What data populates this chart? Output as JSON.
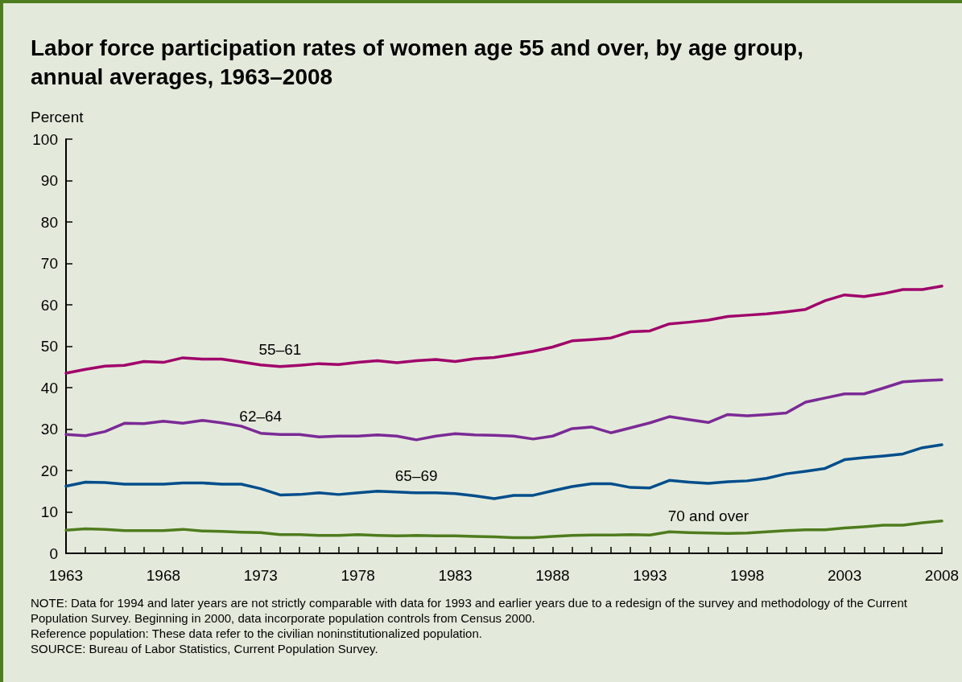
{
  "chart_data": {
    "type": "line",
    "title": "Labor force participation rates of women age 55 and over, by age group, annual averages, 1963–2008",
    "ylabel": "Percent",
    "x": [
      1963,
      1964,
      1965,
      1966,
      1967,
      1968,
      1969,
      1970,
      1971,
      1972,
      1973,
      1974,
      1975,
      1976,
      1977,
      1978,
      1979,
      1980,
      1981,
      1982,
      1983,
      1984,
      1985,
      1986,
      1987,
      1988,
      1989,
      1990,
      1991,
      1992,
      1993,
      1994,
      1995,
      1996,
      1997,
      1998,
      1999,
      2000,
      2001,
      2002,
      2003,
      2004,
      2005,
      2006,
      2007,
      2008
    ],
    "series": [
      {
        "name": "55–61",
        "color": "#a0006a",
        "values": [
          43.5,
          44.4,
          45.2,
          45.4,
          46.3,
          46.1,
          47.2,
          46.9,
          46.9,
          46.2,
          45.5,
          45.1,
          45.4,
          45.8,
          45.6,
          46.1,
          46.5,
          46.0,
          46.5,
          46.8,
          46.3,
          47.0,
          47.3,
          48.0,
          48.8,
          49.8,
          51.3,
          51.6,
          52.0,
          53.5,
          53.7,
          55.4,
          55.8,
          56.3,
          57.2,
          57.5,
          57.8,
          58.3,
          58.9,
          61.0,
          62.4,
          62.0,
          62.7,
          63.7,
          63.7,
          64.5
        ]
      },
      {
        "name": "62–64",
        "color": "#7b2a96",
        "values": [
          28.7,
          28.4,
          29.4,
          31.4,
          31.3,
          31.9,
          31.4,
          32.1,
          31.5,
          30.7,
          29.0,
          28.7,
          28.7,
          28.1,
          28.3,
          28.3,
          28.6,
          28.3,
          27.4,
          28.3,
          28.9,
          28.6,
          28.5,
          28.3,
          27.6,
          28.3,
          30.1,
          30.5,
          29.1,
          30.3,
          31.5,
          33.0,
          32.3,
          31.6,
          33.5,
          33.2,
          33.5,
          33.9,
          36.5,
          37.5,
          38.5,
          38.5,
          39.9,
          41.4,
          41.7,
          41.9
        ]
      },
      {
        "name": "65–69",
        "color": "#004e8c",
        "values": [
          16.2,
          17.2,
          17.1,
          16.7,
          16.7,
          16.7,
          17.0,
          17.0,
          16.7,
          16.7,
          15.6,
          14.1,
          14.2,
          14.6,
          14.2,
          14.6,
          15.0,
          14.8,
          14.6,
          14.6,
          14.4,
          13.9,
          13.2,
          14.0,
          14.0,
          15.1,
          16.1,
          16.8,
          16.8,
          15.9,
          15.8,
          17.6,
          17.2,
          16.9,
          17.3,
          17.5,
          18.1,
          19.2,
          19.8,
          20.5,
          22.6,
          23.1,
          23.5,
          24.0,
          25.5,
          26.2
        ]
      },
      {
        "name": "70 and over",
        "color": "#4f7c1e",
        "values": [
          5.6,
          5.9,
          5.8,
          5.5,
          5.5,
          5.5,
          5.8,
          5.4,
          5.3,
          5.1,
          5.0,
          4.5,
          4.5,
          4.3,
          4.3,
          4.5,
          4.3,
          4.2,
          4.3,
          4.2,
          4.2,
          4.1,
          4.0,
          3.8,
          3.8,
          4.1,
          4.3,
          4.4,
          4.4,
          4.5,
          4.4,
          5.2,
          5.0,
          4.9,
          4.8,
          4.9,
          5.2,
          5.5,
          5.7,
          5.7,
          6.1,
          6.4,
          6.8,
          6.8,
          7.4,
          7.8
        ]
      }
    ],
    "xlim": [
      1963,
      2008
    ],
    "xticks": [
      1963,
      {
        "value": 1964,
        "label": null
      },
      {
        "value": 1965,
        "label": null
      },
      {
        "value": 1966,
        "label": null
      },
      {
        "value": 1967,
        "label": null
      },
      1968,
      {
        "value": 1969,
        "label": null
      },
      {
        "value": 1970,
        "label": null
      },
      {
        "value": 1971,
        "label": null
      },
      {
        "value": 1972,
        "label": null
      },
      1973,
      {
        "value": 1974,
        "label": null
      },
      {
        "value": 1975,
        "label": null
      },
      {
        "value": 1976,
        "label": null
      },
      {
        "value": 1977,
        "label": null
      },
      1978,
      {
        "value": 1979,
        "label": null
      },
      {
        "value": 1980,
        "label": null
      },
      {
        "value": 1981,
        "label": null
      },
      {
        "value": 1982,
        "label": null
      },
      1983,
      {
        "value": 1984,
        "label": null
      },
      {
        "value": 1985,
        "label": null
      },
      {
        "value": 1986,
        "label": null
      },
      {
        "value": 1987,
        "label": null
      },
      1988,
      {
        "value": 1989,
        "label": null
      },
      {
        "value": 1990,
        "label": null
      },
      {
        "value": 1991,
        "label": null
      },
      {
        "value": 1992,
        "label": null
      },
      1993,
      {
        "value": 1994,
        "label": null
      },
      {
        "value": 1995,
        "label": null
      },
      {
        "value": 1996,
        "label": null
      },
      {
        "value": 1997,
        "label": null
      },
      1998,
      {
        "value": 1999,
        "label": null
      },
      {
        "value": 2000,
        "label": null
      },
      {
        "value": 2001,
        "label": null
      },
      {
        "value": 2002,
        "label": null
      },
      2003,
      {
        "value": 2004,
        "label": null
      },
      {
        "value": 2005,
        "label": null
      },
      {
        "value": 2006,
        "label": null
      },
      {
        "value": 2007,
        "label": null
      },
      2008
    ],
    "ylim": [
      0,
      100
    ],
    "yticks": [
      0,
      10,
      20,
      30,
      40,
      50,
      60,
      70,
      80,
      90,
      100
    ],
    "grid": false,
    "legend": false,
    "marker": "none",
    "line_style": "solid",
    "annotations": [
      "NOTE: Data for 1994 and later years are not strictly comparable with data for 1993 and earlier years due to a redesign of the survey and methodology of the Current Population Survey. Beginning in 2000, data incorporate population controls from Census 2000.",
      "Reference population: These data refer to the civilian noninstitutionalized population.",
      "SOURCE: Bureau of Labor Statistics, Current Population Survey."
    ]
  }
}
